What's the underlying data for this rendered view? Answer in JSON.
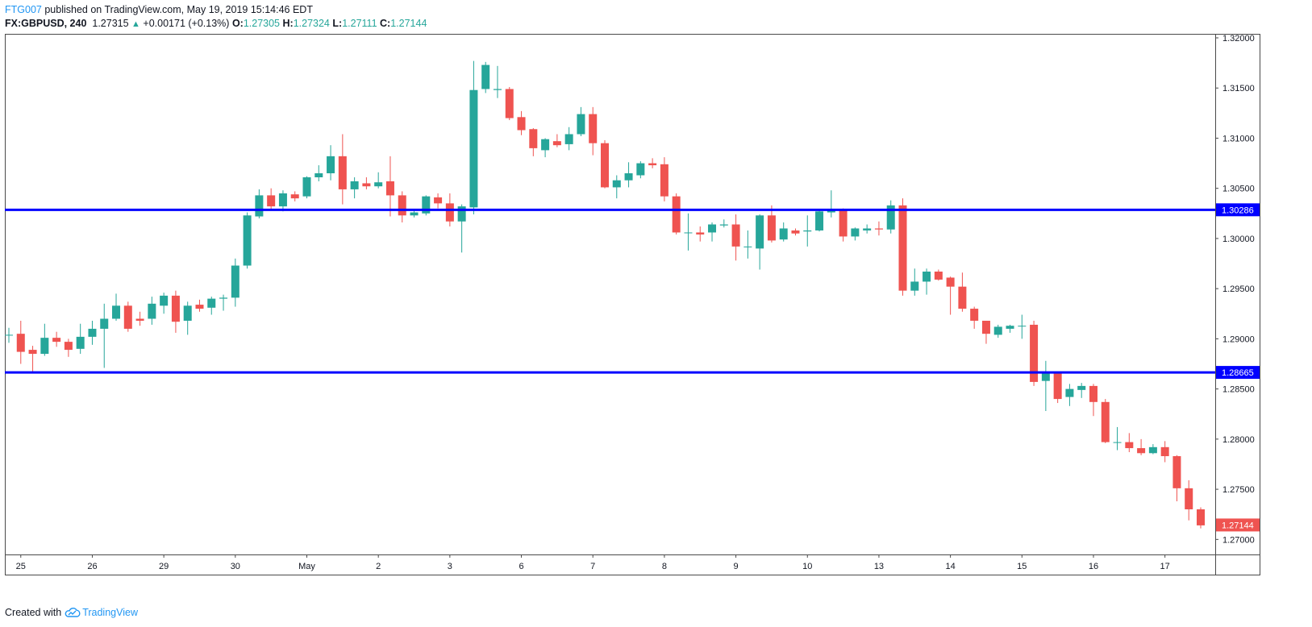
{
  "header": {
    "author": "FTG007",
    "published_text": "published on TradingView.com, May 19, 2019 15:14:46 EDT",
    "symbol": "FX:GBPUSD, 240",
    "last": "1.27315",
    "change": "+0.00171 (+0.13%)",
    "o_label": "O:",
    "o_value": "1.27305",
    "h_label": "H:",
    "h_value": "1.27324",
    "l_label": "L:",
    "l_value": "1.27111",
    "c_label": "C:",
    "c_value": "1.27144"
  },
  "footer": {
    "created_with": "Created with",
    "brand": "TradingView"
  },
  "colors": {
    "up": "#26a69a",
    "down": "#ef5350",
    "level_line": "#0000ff",
    "last_price_tag": "#ef5350"
  },
  "chart_data": {
    "type": "candlestick",
    "ylim": [
      1.2685,
      1.3204
    ],
    "y_ticks": [
      1.32,
      1.315,
      1.31,
      1.305,
      1.3,
      1.295,
      1.29,
      1.285,
      1.28,
      1.275,
      1.27
    ],
    "y_tick_labels": [
      "1.32000",
      "1.31500",
      "1.31000",
      "1.30500",
      "1.30000",
      "1.29500",
      "1.29000",
      "1.28500",
      "1.28000",
      "1.27500",
      "1.27000"
    ],
    "x_ticks": [
      {
        "label": "25",
        "index": 1
      },
      {
        "label": "26",
        "index": 7
      },
      {
        "label": "29",
        "index": 13
      },
      {
        "label": "30",
        "index": 19
      },
      {
        "label": "May",
        "index": 25
      },
      {
        "label": "2",
        "index": 31
      },
      {
        "label": "3",
        "index": 37
      },
      {
        "label": "6",
        "index": 43
      },
      {
        "label": "7",
        "index": 49
      },
      {
        "label": "8",
        "index": 55
      },
      {
        "label": "9",
        "index": 61
      },
      {
        "label": "10",
        "index": 67
      },
      {
        "label": "13",
        "index": 73
      },
      {
        "label": "14",
        "index": 79
      },
      {
        "label": "15",
        "index": 85
      },
      {
        "label": "16",
        "index": 91
      },
      {
        "label": "17",
        "index": 97
      }
    ],
    "horizontal_lines": [
      {
        "value": 1.30286,
        "label": "1.30286"
      },
      {
        "value": 1.28665,
        "label": "1.28665"
      }
    ],
    "last_price": {
      "value": 1.27144,
      "label": "1.27144"
    },
    "candles": [
      [
        1.2904,
        1.2911,
        1.2896,
        1.2904
      ],
      [
        1.2905,
        1.2918,
        1.2875,
        1.2887
      ],
      [
        1.2889,
        1.2893,
        1.2866,
        1.2885
      ],
      [
        1.2885,
        1.2915,
        1.2883,
        1.2901
      ],
      [
        1.2901,
        1.2907,
        1.2892,
        1.2897
      ],
      [
        1.2897,
        1.29,
        1.2882,
        1.2889
      ],
      [
        1.289,
        1.2915,
        1.2885,
        1.2902
      ],
      [
        1.2902,
        1.2918,
        1.2894,
        1.291
      ],
      [
        1.291,
        1.2935,
        1.2871,
        1.292
      ],
      [
        1.292,
        1.2945,
        1.2918,
        1.2933
      ],
      [
        1.2933,
        1.2937,
        1.2907,
        1.291
      ],
      [
        1.292,
        1.2927,
        1.2913,
        1.2918
      ],
      [
        1.292,
        1.2942,
        1.2914,
        1.2935
      ],
      [
        1.2933,
        1.2946,
        1.2925,
        1.2943
      ],
      [
        1.2943,
        1.2948,
        1.2906,
        1.2917
      ],
      [
        1.2918,
        1.2937,
        1.2904,
        1.2933
      ],
      [
        1.2934,
        1.2939,
        1.2927,
        1.293
      ],
      [
        1.2931,
        1.2942,
        1.2924,
        1.294
      ],
      [
        1.294,
        1.2944,
        1.2928,
        1.2941
      ],
      [
        1.2941,
        1.298,
        1.2932,
        1.2973
      ],
      [
        1.2973,
        1.3026,
        1.297,
        1.3023
      ],
      [
        1.3022,
        1.3049,
        1.302,
        1.3043
      ],
      [
        1.3043,
        1.305,
        1.3028,
        1.3032
      ],
      [
        1.3032,
        1.3048,
        1.3027,
        1.3045
      ],
      [
        1.3044,
        1.3047,
        1.3037,
        1.304
      ],
      [
        1.3042,
        1.3062,
        1.304,
        1.3061
      ],
      [
        1.3061,
        1.3073,
        1.3057,
        1.3065
      ],
      [
        1.3065,
        1.3093,
        1.3058,
        1.3082
      ],
      [
        1.3082,
        1.3104,
        1.3034,
        1.3049
      ],
      [
        1.3049,
        1.3061,
        1.304,
        1.3057
      ],
      [
        1.3055,
        1.3061,
        1.3049,
        1.3052
      ],
      [
        1.3052,
        1.3066,
        1.305,
        1.3056
      ],
      [
        1.3057,
        1.3082,
        1.3022,
        1.3043
      ],
      [
        1.3043,
        1.3047,
        1.3016,
        1.3023
      ],
      [
        1.3023,
        1.3029,
        1.3021,
        1.3026
      ],
      [
        1.3025,
        1.3043,
        1.3023,
        1.3042
      ],
      [
        1.3041,
        1.3045,
        1.303,
        1.3035
      ],
      [
        1.3035,
        1.3045,
        1.3012,
        1.3017
      ],
      [
        1.3017,
        1.3034,
        1.2986,
        1.3032
      ],
      [
        1.3031,
        1.3177,
        1.3024,
        1.3148
      ],
      [
        1.3149,
        1.3176,
        1.3145,
        1.3173
      ],
      [
        1.3148,
        1.3172,
        1.314,
        1.3149
      ],
      [
        1.3149,
        1.3151,
        1.3118,
        1.312
      ],
      [
        1.3121,
        1.3127,
        1.3103,
        1.3108
      ],
      [
        1.3109,
        1.311,
        1.3082,
        1.309
      ],
      [
        1.3088,
        1.31,
        1.3081,
        1.3099
      ],
      [
        1.3097,
        1.3104,
        1.3091,
        1.3093
      ],
      [
        1.3094,
        1.3111,
        1.3088,
        1.3104
      ],
      [
        1.3104,
        1.3131,
        1.3102,
        1.3124
      ],
      [
        1.3124,
        1.3131,
        1.3083,
        1.3095
      ],
      [
        1.3095,
        1.3098,
        1.305,
        1.3051
      ],
      [
        1.3051,
        1.3063,
        1.304,
        1.3058
      ],
      [
        1.3058,
        1.3076,
        1.3051,
        1.3065
      ],
      [
        1.3063,
        1.3077,
        1.306,
        1.3075
      ],
      [
        1.3075,
        1.308,
        1.307,
        1.3073
      ],
      [
        1.3074,
        1.3081,
        1.3037,
        1.3042
      ],
      [
        1.3042,
        1.3045,
        1.3004,
        1.3006
      ],
      [
        1.3006,
        1.3025,
        1.2988,
        1.3006
      ],
      [
        1.3006,
        1.3012,
        1.2997,
        1.3004
      ],
      [
        1.3006,
        1.3016,
        1.2997,
        1.3014
      ],
      [
        1.3013,
        1.3019,
        1.3011,
        1.3014
      ],
      [
        1.3014,
        1.3024,
        1.2978,
        1.2992
      ],
      [
        1.2992,
        1.3008,
        1.298,
        1.2992
      ],
      [
        1.299,
        1.3024,
        1.2969,
        1.3023
      ],
      [
        1.3023,
        1.3033,
        1.2996,
        1.2998
      ],
      [
        1.2999,
        1.3016,
        1.2997,
        1.301
      ],
      [
        1.3008,
        1.301,
        1.3003,
        1.3005
      ],
      [
        1.3007,
        1.3023,
        1.2992,
        1.3008
      ],
      [
        1.3008,
        1.3029,
        1.3007,
        1.3027
      ],
      [
        1.3026,
        1.3048,
        1.3021,
        1.3029
      ],
      [
        1.3028,
        1.303,
        1.2997,
        1.3002
      ],
      [
        1.3002,
        1.3011,
        1.2998,
        1.301
      ],
      [
        1.3008,
        1.3014,
        1.3005,
        1.301
      ],
      [
        1.301,
        1.3017,
        1.3003,
        1.3009
      ],
      [
        1.3009,
        1.3038,
        1.3005,
        1.3033
      ],
      [
        1.3033,
        1.304,
        1.2943,
        1.2948
      ],
      [
        1.2948,
        1.297,
        1.2943,
        1.2957
      ],
      [
        1.2957,
        1.297,
        1.2944,
        1.2967
      ],
      [
        1.2967,
        1.2969,
        1.2958,
        1.2959
      ],
      [
        1.2961,
        1.2962,
        1.2924,
        1.2952
      ],
      [
        1.2952,
        1.2966,
        1.2927,
        1.293
      ],
      [
        1.293,
        1.2932,
        1.291,
        1.2918
      ],
      [
        1.2918,
        1.2918,
        1.2895,
        1.2905
      ],
      [
        1.2904,
        1.2914,
        1.2901,
        1.2912
      ],
      [
        1.291,
        1.2914,
        1.2906,
        1.2913
      ],
      [
        1.2913,
        1.2924,
        1.29,
        1.2913
      ],
      [
        1.2914,
        1.2918,
        1.2853,
        1.2857
      ],
      [
        1.2858,
        1.2878,
        1.2828,
        1.2866
      ],
      [
        1.2866,
        1.2866,
        1.2836,
        1.284
      ],
      [
        1.2842,
        1.2855,
        1.2833,
        1.285
      ],
      [
        1.2849,
        1.2856,
        1.2841,
        1.2853
      ],
      [
        1.2853,
        1.2855,
        1.2823,
        1.2837
      ],
      [
        1.2837,
        1.284,
        1.2796,
        1.2797
      ],
      [
        1.2797,
        1.2812,
        1.2789,
        1.2797
      ],
      [
        1.2797,
        1.2806,
        1.2787,
        1.2791
      ],
      [
        1.2791,
        1.28,
        1.2784,
        1.2786
      ],
      [
        1.2786,
        1.2795,
        1.2785,
        1.2792
      ],
      [
        1.2792,
        1.2798,
        1.2777,
        1.2783
      ],
      [
        1.2783,
        1.2784,
        1.2738,
        1.2751
      ],
      [
        1.2751,
        1.2759,
        1.2719,
        1.273
      ],
      [
        1.273,
        1.2732,
        1.2711,
        1.2714
      ]
    ]
  }
}
